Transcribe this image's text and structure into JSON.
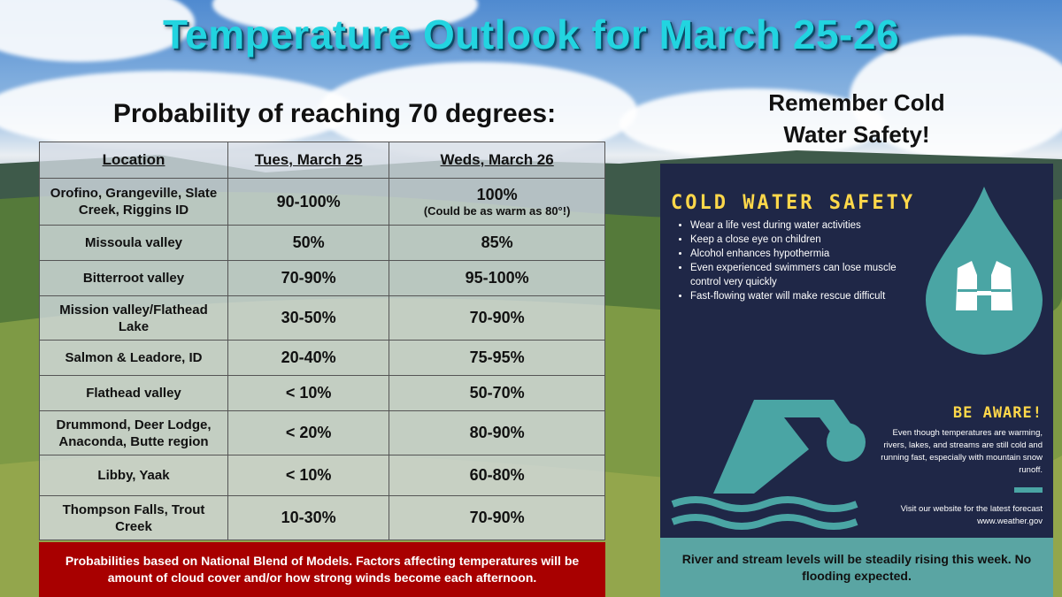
{
  "title": "Temperature Outlook for March 25-26",
  "subtitle": "Probability of reaching 70 degrees:",
  "remember": "Remember Cold Water Safety!",
  "table": {
    "headers": [
      "Location",
      "Tues, March 25",
      "Weds, March 26"
    ],
    "rows": [
      {
        "location": "Orofino, Grangeville, Slate Creek, Riggins ID",
        "tue": "90-100%",
        "wed": "100%",
        "wed_note": "(Could be as warm as 80°!)"
      },
      {
        "location": "Missoula valley",
        "tue": "50%",
        "wed": "85%",
        "wed_note": ""
      },
      {
        "location": "Bitterroot valley",
        "tue": "70-90%",
        "wed": "95-100%",
        "wed_note": ""
      },
      {
        "location": "Mission valley/Flathead Lake",
        "tue": "30-50%",
        "wed": "70-90%",
        "wed_note": ""
      },
      {
        "location": "Salmon & Leadore, ID",
        "tue": "20-40%",
        "wed": "75-95%",
        "wed_note": ""
      },
      {
        "location": "Flathead valley",
        "tue": "< 10%",
        "wed": "50-70%",
        "wed_note": ""
      },
      {
        "location": "Drummond, Deer Lodge, Anaconda, Butte region",
        "tue": "< 20%",
        "wed": "80-90%",
        "wed_note": ""
      },
      {
        "location": "Libby, Yaak",
        "tue": "< 10%",
        "wed": "60-80%",
        "wed_note": ""
      },
      {
        "location": "Thompson Falls, Trout Creek",
        "tue": "10-30%",
        "wed": "70-90%",
        "wed_note": ""
      }
    ]
  },
  "footer_left": "Probabilities based on National Blend of Models. Factors affecting temperatures will be amount of cloud cover and/or how strong winds become each afternoon.",
  "cold_water": {
    "title": "COLD WATER SAFETY",
    "items": [
      "Wear a life vest during water activities",
      "Keep a close eye on children",
      "Alcohol  enhances hypothermia",
      "Even experienced swimmers can lose muscle control very quickly",
      "Fast-flowing water will make rescue difficult"
    ],
    "be_aware": "BE AWARE!",
    "aware_text": "Even though temperatures are warming, rivers, lakes, and streams are still cold and running fast, especially with mountain snow runoff.",
    "site_text_1": "Visit our website for the latest forecast",
    "site_text_2": "www.weather.gov"
  },
  "footer_right": "River and stream levels will be steadily rising this week. No flooding expected.",
  "colors": {
    "title": "#22d4e0",
    "card_bg": "#1f2747",
    "accent_yellow": "#ffd84a",
    "teal": "#4aa5a4",
    "footer_red": "#a80000"
  }
}
